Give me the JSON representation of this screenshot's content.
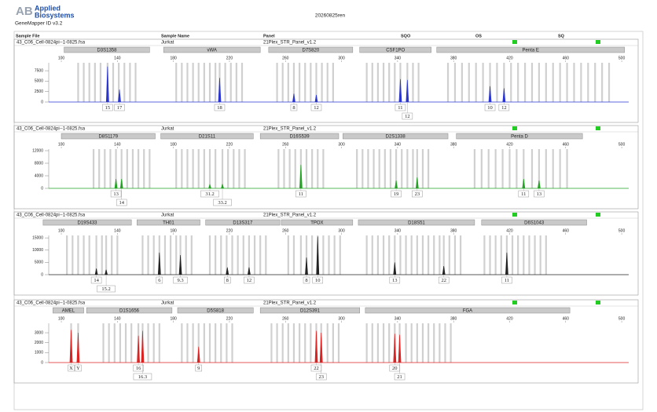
{
  "header": {
    "logo": "AB",
    "brand": [
      "Applied",
      "Biosystems"
    ],
    "software": "GeneMapper ID v3.2",
    "title": "20260825ren",
    "columns": [
      "Sample File",
      "Sample Name",
      "Panel",
      "SQO",
      "OS",
      "SQ"
    ]
  },
  "chart_data": [
    {
      "type": "electropherogram",
      "sample_file": "43_C06_Cell-0824pi--1-0825.fsa",
      "sample_name": "Jurkat",
      "panel": "21Plex_STR_Panel_v1.2",
      "color": "#2a35d0",
      "xlim": [
        91,
        505
      ],
      "xticks": [
        100,
        140,
        180,
        220,
        260,
        300,
        340,
        380,
        420,
        460,
        500
      ],
      "ylim": [
        0,
        9400
      ],
      "yticks": [
        0,
        2500,
        5000,
        7500
      ],
      "markers": [
        {
          "name": "D3S1358",
          "range": [
            102,
            163
          ],
          "bins": [
            112,
            116,
            120,
            124,
            128,
            133,
            137,
            141,
            145,
            149,
            153
          ]
        },
        {
          "name": "vWA",
          "range": [
            173,
            242
          ],
          "bins": [
            182,
            186,
            190,
            194,
            198,
            202,
            206,
            210,
            213,
            217,
            221,
            225,
            229
          ]
        },
        {
          "name": "D7S820",
          "range": [
            248,
            308
          ],
          "bins": [
            254,
            258,
            262,
            266,
            270,
            274,
            278,
            282,
            286,
            290,
            294
          ]
        },
        {
          "name": "CSF1PO",
          "range": [
            313,
            364
          ],
          "bins": [
            318,
            322,
            326,
            330,
            334,
            338,
            342,
            347,
            351,
            355
          ]
        },
        {
          "name": "Penta E",
          "range": [
            368,
            502
          ],
          "bins": [
            376,
            381,
            386,
            391,
            396,
            401,
            406,
            411,
            416,
            421,
            426,
            431,
            436,
            441,
            446,
            451,
            456,
            461,
            466,
            471,
            476,
            481,
            486,
            491
          ]
        }
      ],
      "peaks": [
        {
          "x": 133,
          "height": 8500,
          "label": "15"
        },
        {
          "x": 141.5,
          "height": 3000,
          "label": "17"
        },
        {
          "x": 213,
          "height": 5800,
          "label": "18"
        },
        {
          "x": 266,
          "height": 2000,
          "label": "8"
        },
        {
          "x": 282,
          "height": 1700,
          "label": "12"
        },
        {
          "x": 342,
          "height": 5500,
          "label": "11"
        },
        {
          "x": 347,
          "height": 5300,
          "label": "12"
        },
        {
          "x": 406,
          "height": 3800,
          "label": "10"
        },
        {
          "x": 416,
          "height": 3300,
          "label": "12"
        }
      ]
    },
    {
      "type": "electropherogram",
      "sample_file": "43_C06_Cell-0824pi--1-0825.fsa",
      "sample_name": "Jurkat",
      "panel": "21Plex_STR_Panel_v1.2",
      "color": "#23a323",
      "xlim": [
        91,
        505
      ],
      "xticks": [
        100,
        140,
        180,
        220,
        260,
        300,
        340,
        380,
        420,
        460,
        500
      ],
      "ylim": [
        0,
        12500
      ],
      "yticks": [
        0,
        4000,
        8000,
        12000
      ],
      "markers": [
        {
          "name": "D8S1179",
          "range": [
            100,
            167
          ],
          "bins": [
            123,
            127,
            131,
            135,
            139,
            143,
            147,
            151,
            155,
            159,
            163
          ]
        },
        {
          "name": "D21S11",
          "range": [
            171,
            237
          ],
          "bins": [
            182,
            186,
            190,
            194,
            198,
            202,
            206,
            210,
            215,
            219,
            223,
            227,
            231
          ]
        },
        {
          "name": "D16S539",
          "range": [
            242,
            298
          ],
          "bins": [
            255,
            259,
            263,
            267,
            271,
            275,
            279,
            283,
            287
          ]
        },
        {
          "name": "D2S1338",
          "range": [
            301,
            376
          ],
          "bins": [
            311,
            315,
            319,
            323,
            327,
            331,
            335,
            339,
            343,
            347,
            351,
            354,
            358,
            362
          ]
        },
        {
          "name": "Penta D",
          "range": [
            382,
            472
          ],
          "bins": [
            395,
            400,
            405,
            410,
            415,
            420,
            425,
            430,
            436,
            441,
            446,
            451,
            456,
            461
          ]
        }
      ],
      "peaks": [
        {
          "x": 139,
          "height": 3000,
          "label": "13"
        },
        {
          "x": 143,
          "height": 3000,
          "label": "14"
        },
        {
          "x": 206,
          "height": 1200,
          "label": "31.2"
        },
        {
          "x": 215,
          "height": 1300,
          "label": "33.2"
        },
        {
          "x": 271,
          "height": 7500,
          "label": "11"
        },
        {
          "x": 339,
          "height": 2500,
          "label": "19"
        },
        {
          "x": 354,
          "height": 3500,
          "label": "23"
        },
        {
          "x": 430,
          "height": 3000,
          "label": "11"
        },
        {
          "x": 441,
          "height": 2500,
          "label": "13"
        }
      ]
    },
    {
      "type": "electropherogram",
      "sample_file": "43_C06_Cell-0824pi--1-0825.fsa",
      "sample_name": "Jurkat",
      "panel": "21Plex_STR_Panel_v1.2",
      "color": "#222222",
      "xlim": [
        91,
        505
      ],
      "xticks": [
        100,
        140,
        180,
        220,
        260,
        300,
        340,
        380,
        420,
        460,
        500
      ],
      "ylim": [
        0,
        16000
      ],
      "yticks": [
        0,
        5000,
        10000,
        15000
      ],
      "markers": [
        {
          "name": "D19S433",
          "range": [
            87,
            150
          ],
          "bins": [
            104,
            108,
            112,
            116,
            120,
            125,
            129,
            132,
            136,
            140
          ]
        },
        {
          "name": "TH01",
          "range": [
            154,
            199
          ],
          "bins": [
            158,
            162,
            166,
            170,
            174,
            178,
            182,
            185,
            189,
            193
          ]
        },
        {
          "name": "D13S317",
          "range": [
            203,
            256
          ],
          "bins": [
            206,
            210,
            214,
            218,
            222,
            226,
            230,
            234,
            238,
            242,
            246
          ]
        },
        {
          "name": "TPOX",
          "range": [
            257,
            308
          ],
          "bins": [
            262,
            266,
            271,
            275,
            279,
            283,
            287,
            291,
            295,
            299
          ]
        },
        {
          "name": "D18S51",
          "range": [
            312,
            395
          ],
          "bins": [
            318,
            322,
            326,
            330,
            334,
            338,
            342,
            346,
            350,
            354,
            358,
            362,
            366,
            370,
            373,
            377,
            381,
            385
          ]
        },
        {
          "name": "D6S1043",
          "range": [
            400,
            475
          ],
          "bins": [
            402,
            406,
            410,
            414,
            418,
            422,
            426,
            430,
            434,
            438,
            442,
            446
          ]
        }
      ],
      "peaks": [
        {
          "x": 125,
          "height": 2500,
          "label": "14"
        },
        {
          "x": 132,
          "height": 2000,
          "label": "15.2"
        },
        {
          "x": 170,
          "height": 9000,
          "label": "6"
        },
        {
          "x": 185,
          "height": 8000,
          "label": "9.3"
        },
        {
          "x": 218.5,
          "height": 3000,
          "label": "8"
        },
        {
          "x": 234,
          "height": 3000,
          "label": "12"
        },
        {
          "x": 275,
          "height": 7000,
          "label": "8"
        },
        {
          "x": 283,
          "height": 15500,
          "label": "10"
        },
        {
          "x": 338,
          "height": 5000,
          "label": "13"
        },
        {
          "x": 373,
          "height": 3500,
          "label": "22"
        },
        {
          "x": 418,
          "height": 9000,
          "label": "11"
        }
      ]
    },
    {
      "type": "electropherogram",
      "sample_file": "43_C06_Cell-0824pi--1-0825.fsa",
      "sample_name": "Jurkat",
      "panel": "21Plex_STR_Panel_v1.2",
      "color": "#dd2222",
      "xlim": [
        91,
        505
      ],
      "xticks": [
        100,
        140,
        180,
        220,
        260,
        300,
        340,
        380,
        420,
        460,
        500
      ],
      "ylim": [
        0,
        3950
      ],
      "yticks": [
        0,
        1000,
        2000,
        3000
      ],
      "markers": [
        {
          "name": "AMEL",
          "range": [
            94,
            116
          ],
          "bins": [
            107,
            112
          ]
        },
        {
          "name": "D1S1656",
          "range": [
            118,
            179
          ],
          "bins": [
            130,
            134,
            138,
            142,
            146,
            150,
            155,
            158,
            162,
            166,
            170
          ]
        },
        {
          "name": "D5S818",
          "range": [
            183,
            237
          ],
          "bins": [
            186,
            190,
            194,
            198,
            202,
            206,
            210,
            214,
            218,
            222
          ]
        },
        {
          "name": "D12S391",
          "range": [
            242,
            313
          ],
          "bins": [
            250,
            254,
            258,
            262,
            266,
            270,
            274,
            278,
            282,
            285.5,
            290,
            294,
            298
          ]
        },
        {
          "name": "FGA",
          "range": [
            317,
            463
          ],
          "bins": [
            318,
            322,
            326,
            330,
            334,
            338,
            341.5,
            346,
            350,
            354,
            358,
            362,
            366,
            370,
            374,
            378
          ]
        }
      ],
      "peaks": [
        {
          "x": 107,
          "height": 3300,
          "label": "X"
        },
        {
          "x": 112,
          "height": 3000,
          "label": "Y"
        },
        {
          "x": 155,
          "height": 2700,
          "label": "16"
        },
        {
          "x": 158,
          "height": 3200,
          "label": "16.3"
        },
        {
          "x": 198,
          "height": 1600,
          "label": "9"
        },
        {
          "x": 282,
          "height": 3200,
          "label": "22"
        },
        {
          "x": 285.5,
          "height": 3000,
          "label": "23"
        },
        {
          "x": 338,
          "height": 2900,
          "label": "20"
        },
        {
          "x": 341.5,
          "height": 2800,
          "label": "21"
        }
      ]
    }
  ]
}
